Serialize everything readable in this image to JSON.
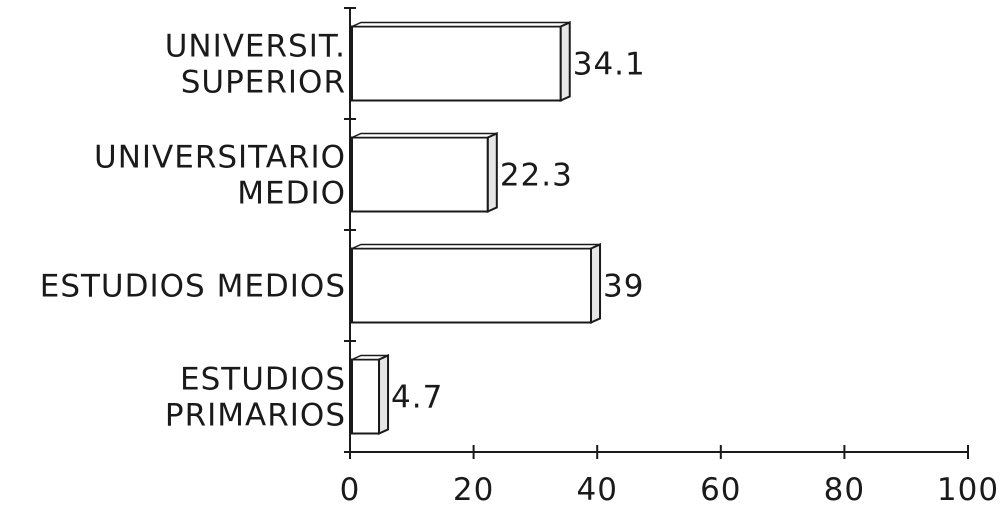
{
  "chart_data": {
    "type": "bar",
    "orientation": "horizontal",
    "categories": [
      [
        "UNIVERSIT.",
        "SUPERIOR"
      ],
      [
        "UNIVERSITARIO",
        "MEDIO"
      ],
      [
        "ESTUDIOS MEDIOS"
      ],
      [
        "ESTUDIOS",
        "PRIMARIOS"
      ]
    ],
    "values": [
      34.1,
      22.3,
      39,
      4.7
    ],
    "data_labels": [
      "34.1",
      "22.3",
      "39",
      "4.7"
    ],
    "xlim": [
      0,
      100
    ],
    "xticks": [
      0,
      20,
      40,
      60,
      80,
      100
    ],
    "xtick_labels": [
      "0",
      "20",
      "40",
      "60",
      "80",
      "100"
    ],
    "title": "",
    "xlabel": "",
    "ylabel": "",
    "grid": false,
    "style": "3d-outline",
    "colors": {
      "line": "#1a1a1a",
      "bar_face": "#ffffff",
      "bar_side": "#e6e6e6"
    }
  }
}
